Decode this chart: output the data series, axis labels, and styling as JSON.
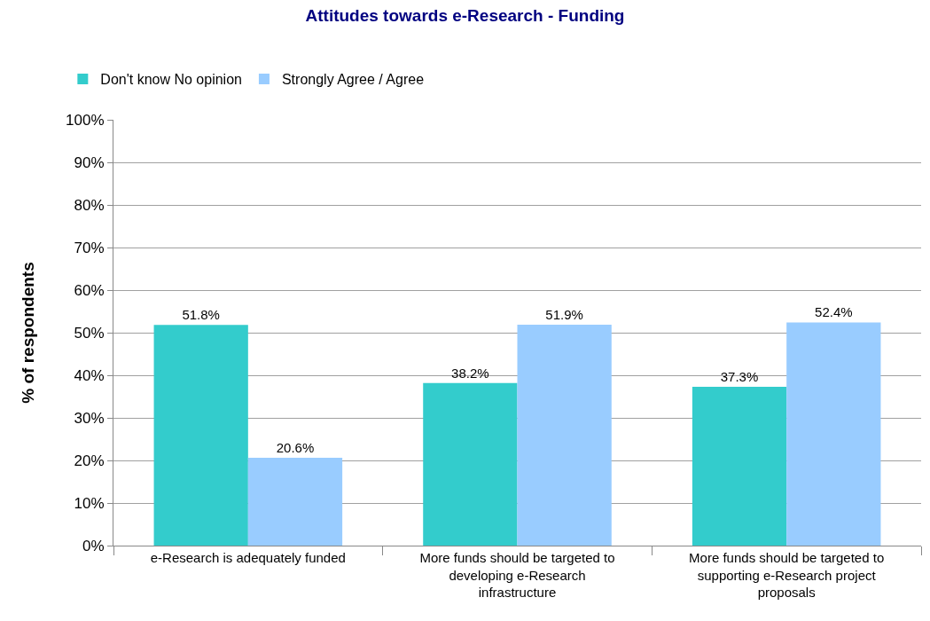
{
  "chart_data": {
    "type": "bar",
    "title": "Attitudes towards e-Research - Funding",
    "ylabel": "% of respondents",
    "categories": [
      "e-Research is adequately funded",
      "More funds should be targeted to developing e-Research infrastructure",
      "More funds should be targeted to supporting e-Research project proposals"
    ],
    "series": [
      {
        "name": "Don't know No opinion",
        "color": "#33cccc",
        "values": [
          51.8,
          38.2,
          37.3
        ],
        "value_labels": [
          "51.8%",
          "38.2%",
          "37.3%"
        ]
      },
      {
        "name": "Strongly Agree / Agree",
        "color": "#99ccff",
        "values": [
          20.6,
          51.9,
          52.4
        ],
        "value_labels": [
          "20.6%",
          "51.9%",
          "52.4%"
        ]
      }
    ],
    "ylim": [
      0,
      100
    ],
    "yticks": [
      {
        "value": 0,
        "label": "0%"
      },
      {
        "value": 10,
        "label": "10%"
      },
      {
        "value": 20,
        "label": "20%"
      },
      {
        "value": 30,
        "label": "30%"
      },
      {
        "value": 40,
        "label": "40%"
      },
      {
        "value": 50,
        "label": "50%"
      },
      {
        "value": 60,
        "label": "60%"
      },
      {
        "value": 70,
        "label": "70%"
      },
      {
        "value": 80,
        "label": "80%"
      },
      {
        "value": 90,
        "label": "90%"
      },
      {
        "value": 100,
        "label": "100%"
      }
    ],
    "grid": "y",
    "legend": "top left"
  }
}
